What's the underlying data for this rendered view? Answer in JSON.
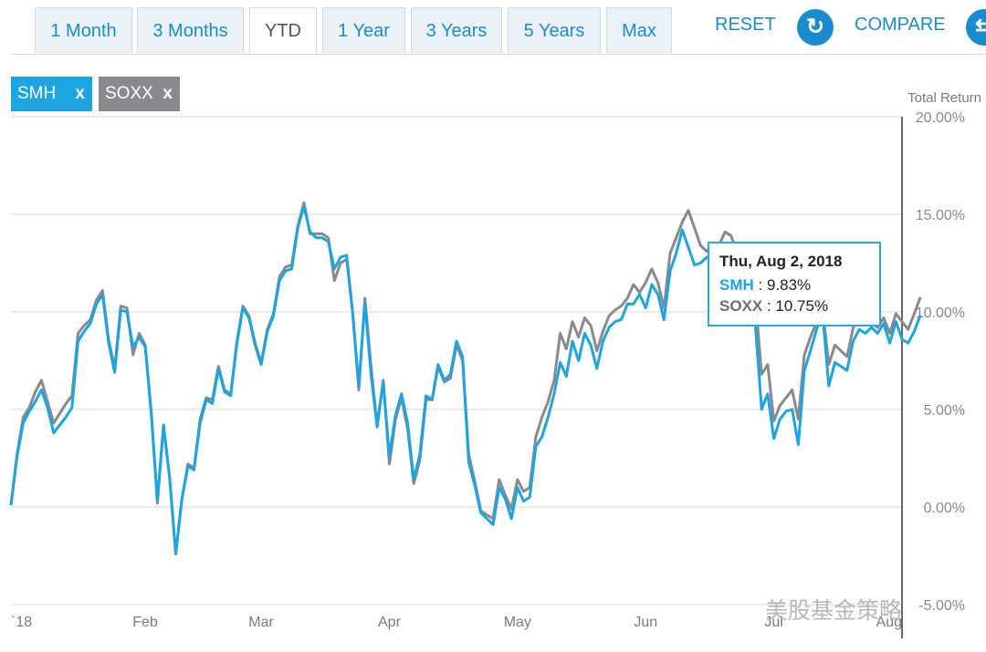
{
  "tabs": [
    {
      "label": "1 Month",
      "active": false
    },
    {
      "label": "3 Months",
      "active": false
    },
    {
      "label": "YTD",
      "active": true
    },
    {
      "label": "1 Year",
      "active": false
    },
    {
      "label": "3 Years",
      "active": false
    },
    {
      "label": "5 Years",
      "active": false
    },
    {
      "label": "Max",
      "active": false
    }
  ],
  "toolbar": {
    "reset_label": "RESET",
    "reset_icon": "refresh-icon",
    "compare_label": "COMPARE",
    "compare_icon": "swap-icon"
  },
  "symbols": [
    {
      "label": "SMH",
      "remove": "x",
      "color": "#1ea4e0"
    },
    {
      "label": "SOXX",
      "remove": "x",
      "color": "#8a8a8e"
    }
  ],
  "tooltip": {
    "date": "Thu, Aug 2, 2018",
    "rows": [
      {
        "name": "SMH",
        "sep": " : ",
        "value": "9.83%"
      },
      {
        "name": "SOXX",
        "sep": " : ",
        "value": "10.75%"
      }
    ]
  },
  "watermark": "美股基金策略",
  "chart_data": {
    "type": "line",
    "ylabel": "Total Return",
    "y_ticks": [
      "20.00%",
      "15.00%",
      "10.00%",
      "5.00%",
      "0.00%",
      "-5.00%"
    ],
    "ylim": [
      -5,
      20
    ],
    "x_ticks": [
      "`18",
      "Feb",
      "Mar",
      "Apr",
      "May",
      "Jun",
      "Jul",
      "Aug"
    ],
    "x_tick_positions": [
      0,
      22,
      41,
      62,
      83,
      104,
      125,
      146
    ],
    "xlim": [
      0,
      146
    ],
    "grid": true,
    "series": [
      {
        "name": "SMH",
        "color": "#1ea4e0",
        "values": [
          0.1,
          2.6,
          4.3,
          4.9,
          5.4,
          6.0,
          5.1,
          3.8,
          4.2,
          4.6,
          5.1,
          8.5,
          9.0,
          9.4,
          10.4,
          10.9,
          8.4,
          6.9,
          10.1,
          10.0,
          8.2,
          8.7,
          8.2,
          4.7,
          0.3,
          4.2,
          1.5,
          -2.4,
          0.4,
          2.1,
          1.9,
          4.3,
          5.5,
          5.3,
          7.1,
          5.9,
          5.7,
          8.3,
          10.2,
          9.7,
          8.3,
          7.3,
          9.0,
          9.8,
          11.6,
          12.1,
          12.2,
          14.3,
          15.4,
          14.1,
          13.8,
          13.8,
          13.6,
          12.2,
          12.8,
          12.9,
          9.9,
          6.2,
          10.5,
          6.8,
          4.1,
          6.4,
          2.6,
          4.7,
          5.8,
          4.3,
          1.4,
          2.7,
          5.7,
          5.5,
          7.3,
          6.5,
          6.8,
          8.5,
          7.7,
          2.3,
          1.1,
          -0.3,
          -0.6,
          -0.9,
          1.0,
          0.4,
          -0.6,
          1.0,
          0.3,
          0.5,
          3.1,
          3.6,
          4.6,
          5.8,
          7.4,
          6.7,
          8.5,
          7.5,
          8.9,
          8.3,
          7.1,
          8.5,
          9.2,
          9.5,
          9.6,
          10.4,
          10.4,
          10.9,
          10.2,
          11.4,
          10.9,
          9.6,
          12.1,
          13.0,
          14.2,
          13.3,
          12.4,
          12.5,
          12.8,
          12.5,
          12.6,
          12.8,
          12.3,
          11.6,
          12.1,
          10.9,
          9.2,
          5.0,
          5.8,
          3.5,
          4.5,
          4.9,
          5.0,
          3.2,
          7.0,
          8.0,
          9.1,
          9.9,
          6.2,
          7.4,
          7.2,
          7.0,
          8.5,
          9.1,
          8.9,
          9.2,
          8.9,
          9.4,
          8.4,
          9.5,
          8.6,
          8.4,
          9.0,
          9.83
        ]
      },
      {
        "name": "SOXX",
        "color": "#8a8a8e",
        "values": [
          0.1,
          2.7,
          4.6,
          5.1,
          5.9,
          6.5,
          5.4,
          4.3,
          4.8,
          5.3,
          5.7,
          8.9,
          9.3,
          9.6,
          10.6,
          11.1,
          8.6,
          7.1,
          10.3,
          10.2,
          7.8,
          8.9,
          8.3,
          4.8,
          0.2,
          4.2,
          1.5,
          -2.4,
          0.4,
          2.2,
          2.0,
          4.5,
          5.6,
          5.5,
          7.2,
          6.0,
          5.8,
          8.4,
          10.3,
          9.8,
          8.4,
          7.4,
          9.1,
          9.9,
          11.8,
          12.3,
          12.4,
          14.4,
          15.6,
          14.0,
          14.0,
          14.0,
          13.8,
          11.6,
          12.5,
          12.7,
          9.9,
          6.0,
          10.7,
          7.2,
          4.2,
          6.5,
          2.2,
          4.5,
          5.6,
          4.0,
          1.2,
          2.4,
          5.5,
          5.5,
          7.2,
          6.4,
          6.6,
          8.3,
          7.5,
          2.7,
          1.3,
          -0.2,
          -0.4,
          -0.6,
          1.4,
          0.6,
          -0.1,
          1.4,
          0.8,
          1.0,
          3.6,
          4.6,
          5.4,
          6.5,
          8.9,
          8.1,
          9.5,
          8.7,
          9.7,
          9.3,
          8.0,
          9.0,
          9.8,
          10.1,
          10.3,
          10.7,
          11.4,
          11.0,
          11.5,
          12.2,
          11.5,
          10.2,
          13.0,
          13.8,
          14.6,
          15.2,
          14.3,
          13.4,
          13.1,
          13.5,
          13.4,
          14.1,
          13.9,
          13.0,
          12.9,
          12.2,
          10.6,
          6.8,
          7.3,
          4.4,
          5.2,
          5.6,
          6.0,
          4.5,
          7.8,
          8.7,
          9.5,
          10.1,
          7.3,
          8.3,
          8.0,
          7.7,
          9.2,
          9.6,
          9.4,
          9.4,
          9.2,
          9.7,
          8.9,
          9.9,
          9.5,
          9.1,
          9.9,
          10.75
        ]
      }
    ]
  }
}
